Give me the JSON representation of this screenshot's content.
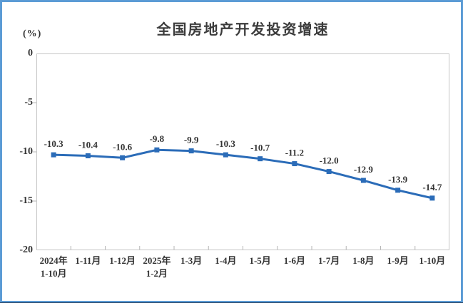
{
  "chart": {
    "title": "全国房地产开发投资增速",
    "unit_label": "(%)"
  },
  "chart_data": {
    "type": "line",
    "title": "全国房地产开发投资增速",
    "ylabel": "(%)",
    "xlabel": "",
    "categories": [
      "2024年\n1-10月",
      "1-11月",
      "1-12月",
      "2025年\n1-2月",
      "1-3月",
      "1-4月",
      "1-5月",
      "1-6月",
      "1-7月",
      "1-8月",
      "1-9月",
      "1-10月"
    ],
    "series": [
      {
        "name": "全国房地产开发投资增速",
        "values": [
          -10.3,
          -10.4,
          -10.6,
          -9.8,
          -9.9,
          -10.3,
          -10.7,
          -11.2,
          -12.0,
          -12.9,
          -13.9,
          -14.7
        ]
      }
    ],
    "data_labels": [
      "-10.3",
      "-10.4",
      "-10.6",
      "-9.8",
      "-9.9",
      "-10.3",
      "-10.7",
      "-11.2",
      "-12.0",
      "-12.9",
      "-13.9",
      "-14.7"
    ],
    "ylim": [
      -20,
      0
    ],
    "yticks": [
      0,
      -5,
      -10,
      -15,
      -20
    ],
    "grid": false,
    "legend": "none",
    "line_color": "#2b6cb8",
    "marker": "square",
    "frame_color": "#5b9bd5",
    "axis_color": "#c6c6c6",
    "text_color": "#333333"
  }
}
